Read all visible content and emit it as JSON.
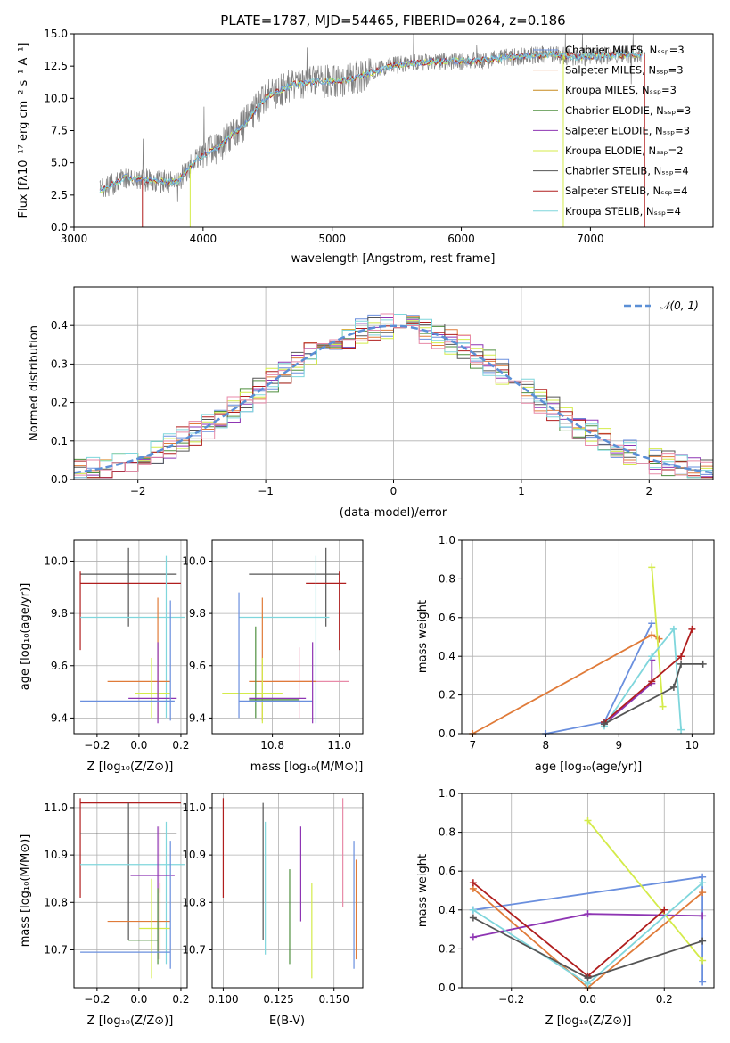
{
  "colors": {
    "chabrier_miles": "#6a8fde",
    "salpeter_miles": "#e07b39",
    "kroupa_miles": "#c78a1e",
    "chabrier_elodie": "#4f8f3f",
    "salpeter_elodie": "#8e35b3",
    "kroupa_elodie": "#d4eb4a",
    "chabrier_stelib": "#555555",
    "salpeter_stelib": "#b01e1e",
    "kroupa_stelib": "#7fd6dc",
    "pink": "#e88aa8",
    "spectrum": "#808080",
    "gauss": "#5b8fd6"
  },
  "chart_data": [
    {
      "id": "spectrum",
      "type": "line",
      "title": "PLATE=1787, MJD=54465, FIBERID=0264, z=0.186",
      "xlabel": "wavelength [Angstrom, rest frame]",
      "ylabel": "Flux [fλ10⁻¹⁷ erg cm⁻² s⁻¹ A⁻¹]",
      "xlim": [
        3000,
        7950
      ],
      "ylim": [
        0,
        15
      ],
      "xticks": [
        "3000",
        "4000",
        "5000",
        "6000",
        "7000"
      ],
      "yticks": [
        "0.0",
        "2.5",
        "5.0",
        "7.5",
        "10.0",
        "12.5",
        "15.0"
      ],
      "legend_position": "right",
      "legend": [
        "Chabrier MILES, Nₛₛₚ=3",
        "Salpeter MILES, Nₛₛₚ=3",
        "Kroupa MILES, Nₛₛₚ=3",
        "Chabrier ELODIE, Nₛₛₚ=3",
        "Salpeter ELODIE, Nₛₛₚ=3",
        "Kroupa ELODIE, Nₛₛₚ=2",
        "Chabrier STELIB, Nₛₛₚ=4",
        "Salpeter STELIB, Nₛₛₚ=4",
        "Kroupa STELIB, Nₛₛₚ=4"
      ],
      "continuum": {
        "x": [
          3200,
          3400,
          3600,
          3800,
          3950,
          4100,
          4300,
          4500,
          4700,
          4900,
          5100,
          5300,
          5500,
          5700,
          5900,
          6100,
          6300,
          6500,
          6700,
          6900,
          7100,
          7300,
          7400
        ],
        "y": [
          2.8,
          3.9,
          3.6,
          3.5,
          5.3,
          6.1,
          7.8,
          10.2,
          11.1,
          11.3,
          11.4,
          12.0,
          12.6,
          12.8,
          12.9,
          12.9,
          13.1,
          13.3,
          13.4,
          13.2,
          13.3,
          13.4,
          13.4
        ]
      }
    },
    {
      "id": "residuals",
      "type": "line",
      "xlabel": "(data-model)/error",
      "ylabel": "Normed distribution",
      "xlim": [
        -2.5,
        2.5
      ],
      "ylim": [
        0,
        0.5
      ],
      "xticks": [
        "−2",
        "−1",
        "0",
        "1",
        "2"
      ],
      "yticks": [
        "0.0",
        "0.1",
        "0.2",
        "0.3",
        "0.4"
      ],
      "legend": [
        "𝒩(0, 1)"
      ],
      "legend_position": "top-right",
      "gauss": {
        "mean": 0,
        "sigma": 1
      }
    },
    {
      "id": "age_vs_Z",
      "type": "scatter",
      "xlabel": "Z [log₁₀(Z/Z⊙)]",
      "ylabel": "age  [log₁₀(age/yr)]",
      "xlim": [
        -0.31,
        0.23
      ],
      "ylim": [
        9.34,
        10.08
      ],
      "xticks": [
        "−0.2",
        "0.0",
        "0.2"
      ],
      "yticks": [
        "9.4",
        "9.6",
        "9.8",
        "10.0"
      ]
    },
    {
      "id": "age_vs_mass",
      "type": "scatter",
      "xlabel": "mass [log₁₀(M/M⊙)]",
      "xlim": [
        10.62,
        11.07
      ],
      "ylim": [
        9.34,
        10.08
      ],
      "xticks": [
        "10.8",
        "11.0"
      ],
      "yticks": [
        "9.4",
        "9.6",
        "9.8",
        "10.0"
      ]
    },
    {
      "id": "weight_vs_age",
      "type": "line",
      "xlabel": "age  [log₁₀(age/yr)]",
      "ylabel": "mass weight",
      "xlim": [
        6.85,
        10.3
      ],
      "ylim": [
        0,
        1
      ],
      "xticks": [
        "7",
        "8",
        "9",
        "10"
      ],
      "yticks": [
        "0.0",
        "0.2",
        "0.4",
        "0.6",
        "0.8",
        "1.0"
      ],
      "series": [
        {
          "key": "chabrier_miles",
          "x": [
            8.0,
            8.8,
            9.45
          ],
          "y": [
            0.0,
            0.06,
            0.57
          ]
        },
        {
          "key": "salpeter_miles",
          "x": [
            7.0,
            9.45,
            9.55
          ],
          "y": [
            0.0,
            0.51,
            0.49
          ]
        },
        {
          "key": "kroupa_elodie",
          "x": [
            9.45,
            9.6
          ],
          "y": [
            0.86,
            0.14
          ]
        },
        {
          "key": "salpeter_elodie",
          "x": [
            8.8,
            9.45,
            9.45
          ],
          "y": [
            0.05,
            0.26,
            0.38
          ]
        },
        {
          "key": "kroupa_stelib",
          "x": [
            8.8,
            9.45,
            9.75,
            9.85
          ],
          "y": [
            0.04,
            0.4,
            0.54,
            0.02
          ]
        },
        {
          "key": "salpeter_stelib",
          "x": [
            8.8,
            9.45,
            9.85,
            10.0
          ],
          "y": [
            0.06,
            0.27,
            0.4,
            0.54
          ]
        },
        {
          "key": "chabrier_stelib",
          "x": [
            8.8,
            9.75,
            9.85,
            10.15
          ],
          "y": [
            0.05,
            0.24,
            0.36,
            0.36
          ]
        }
      ]
    },
    {
      "id": "mass_vs_Z",
      "type": "scatter",
      "xlabel": "Z [log₁₀(Z/Z⊙)]",
      "ylabel": "mass [log₁₀(M/M⊙)]",
      "xlim": [
        -0.31,
        0.23
      ],
      "ylim": [
        10.62,
        11.03
      ],
      "xticks": [
        "−0.2",
        "0.0",
        "0.2"
      ],
      "yticks": [
        "10.7",
        "10.8",
        "10.9",
        "11.0"
      ]
    },
    {
      "id": "mass_vs_ebv",
      "type": "scatter",
      "xlabel": "E(B-V)",
      "xlim": [
        0.095,
        0.163
      ],
      "ylim": [
        10.62,
        11.03
      ],
      "xticks": [
        "0.100",
        "0.125",
        "0.150"
      ],
      "yticks": [
        "10.7",
        "10.8",
        "10.9",
        "11.0"
      ]
    },
    {
      "id": "weight_vs_Z",
      "type": "line",
      "xlabel": "Z [log₁₀(Z/Z⊙)]",
      "ylabel": "mass weight",
      "xlim": [
        -0.33,
        0.33
      ],
      "ylim": [
        0,
        1
      ],
      "xticks": [
        "−0.2",
        "0.0",
        "0.2"
      ],
      "yticks": [
        "0.0",
        "0.2",
        "0.4",
        "0.6",
        "0.8",
        "1.0"
      ],
      "series": [
        {
          "key": "chabrier_miles",
          "x": [
            -0.3,
            0.3,
            0.3
          ],
          "y": [
            0.4,
            0.57,
            0.03
          ]
        },
        {
          "key": "salpeter_miles",
          "x": [
            -0.3,
            0.0,
            0.3
          ],
          "y": [
            0.51,
            0.0,
            0.49
          ]
        },
        {
          "key": "kroupa_elodie",
          "x": [
            0.0,
            0.3
          ],
          "y": [
            0.86,
            0.14
          ]
        },
        {
          "key": "salpeter_elodie",
          "x": [
            -0.3,
            0.0,
            0.3
          ],
          "y": [
            0.26,
            0.38,
            0.37
          ]
        },
        {
          "key": "kroupa_stelib",
          "x": [
            -0.3,
            0.0,
            0.3
          ],
          "y": [
            0.4,
            0.02,
            0.54
          ]
        },
        {
          "key": "salpeter_stelib",
          "x": [
            -0.3,
            0.0,
            0.2
          ],
          "y": [
            0.54,
            0.06,
            0.4
          ]
        },
        {
          "key": "chabrier_stelib",
          "x": [
            -0.3,
            0.0,
            0.3
          ],
          "y": [
            0.36,
            0.05,
            0.24
          ]
        }
      ]
    }
  ]
}
